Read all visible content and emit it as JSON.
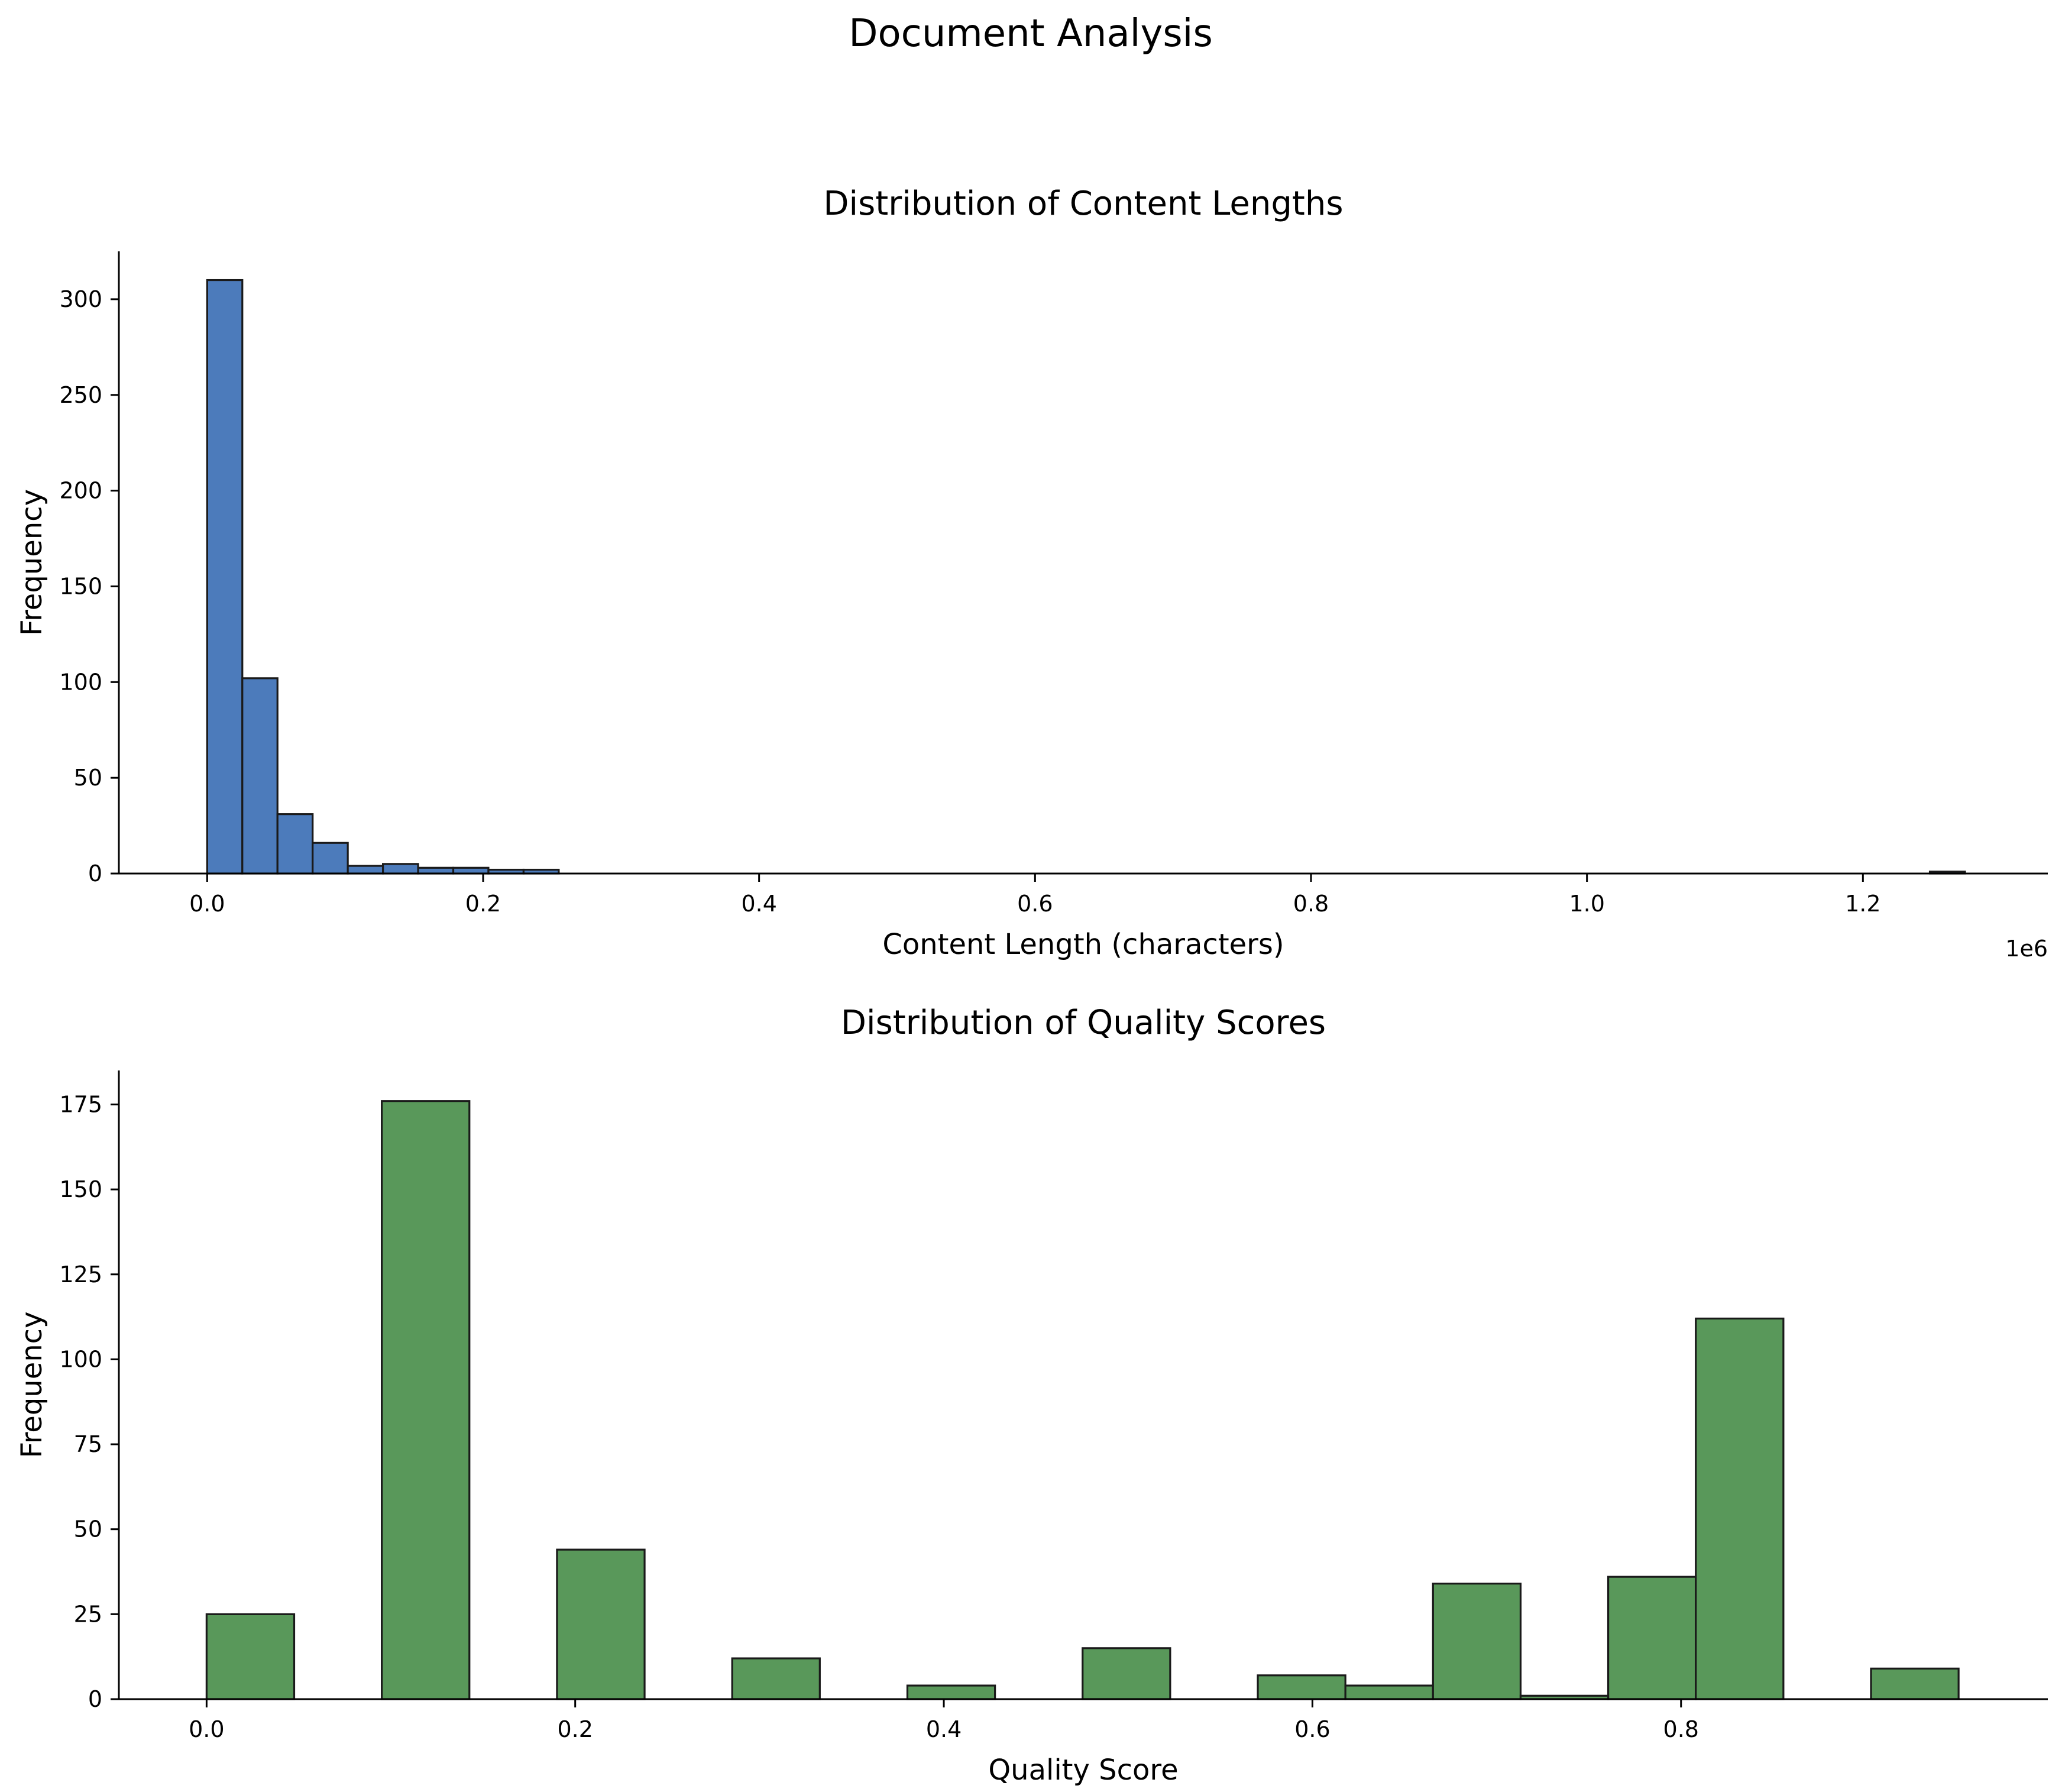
{
  "suptitle": "Document Analysis",
  "chart_data": [
    {
      "type": "bar",
      "title": "Distribution of Content Lengths",
      "xlabel": "Content Length (characters)",
      "ylabel": "Frequency",
      "offset_text": "1e6",
      "color": "#4c7bbb",
      "xlim": [
        -0.064,
        1.334
      ],
      "ylim": [
        0,
        325
      ],
      "xticks": [
        0.0,
        0.2,
        0.4,
        0.6,
        0.8,
        1.0,
        1.2
      ],
      "xtick_labels": [
        "0.0",
        "0.2",
        "0.4",
        "0.6",
        "0.8",
        "1.0",
        "1.2"
      ],
      "yticks": [
        0,
        50,
        100,
        150,
        200,
        250,
        300
      ],
      "ytick_labels": [
        "0",
        "50",
        "100",
        "150",
        "200",
        "250",
        "300"
      ],
      "bin_start": 0.0,
      "bin_width": 0.02548,
      "counts": [
        310,
        102,
        31,
        16,
        4,
        5,
        3,
        3,
        2,
        2,
        0,
        0,
        0,
        0,
        0,
        0,
        0,
        0,
        0,
        0,
        0,
        0,
        0,
        0,
        0,
        0,
        0,
        0,
        0,
        0,
        0,
        0,
        0,
        0,
        0,
        0,
        0,
        0,
        0,
        0,
        0,
        0,
        0,
        0,
        0,
        0,
        0,
        0,
        0,
        1
      ],
      "grid": false,
      "legend": "none"
    },
    {
      "type": "bar",
      "title": "Distribution of Quality Scores",
      "xlabel": "Quality Score",
      "ylabel": "Frequency",
      "offset_text": "",
      "color": "#59985a",
      "xlim": [
        -0.0476,
        0.999
      ],
      "ylim": [
        0,
        185
      ],
      "xticks": [
        0.0,
        0.2,
        0.4,
        0.6,
        0.8
      ],
      "xtick_labels": [
        "0.0",
        "0.2",
        "0.4",
        "0.6",
        "0.8"
      ],
      "yticks": [
        0,
        25,
        50,
        75,
        100,
        125,
        150,
        175
      ],
      "ytick_labels": [
        "0",
        "25",
        "50",
        "75",
        "100",
        "125",
        "150",
        "175"
      ],
      "bin_start": 0.0,
      "bin_width": 0.04753,
      "counts": [
        25,
        0,
        176,
        0,
        44,
        0,
        12,
        0,
        4,
        0,
        15,
        0,
        7,
        4,
        34,
        1,
        36,
        112,
        0,
        9
      ],
      "grid": false,
      "legend": "none"
    }
  ]
}
